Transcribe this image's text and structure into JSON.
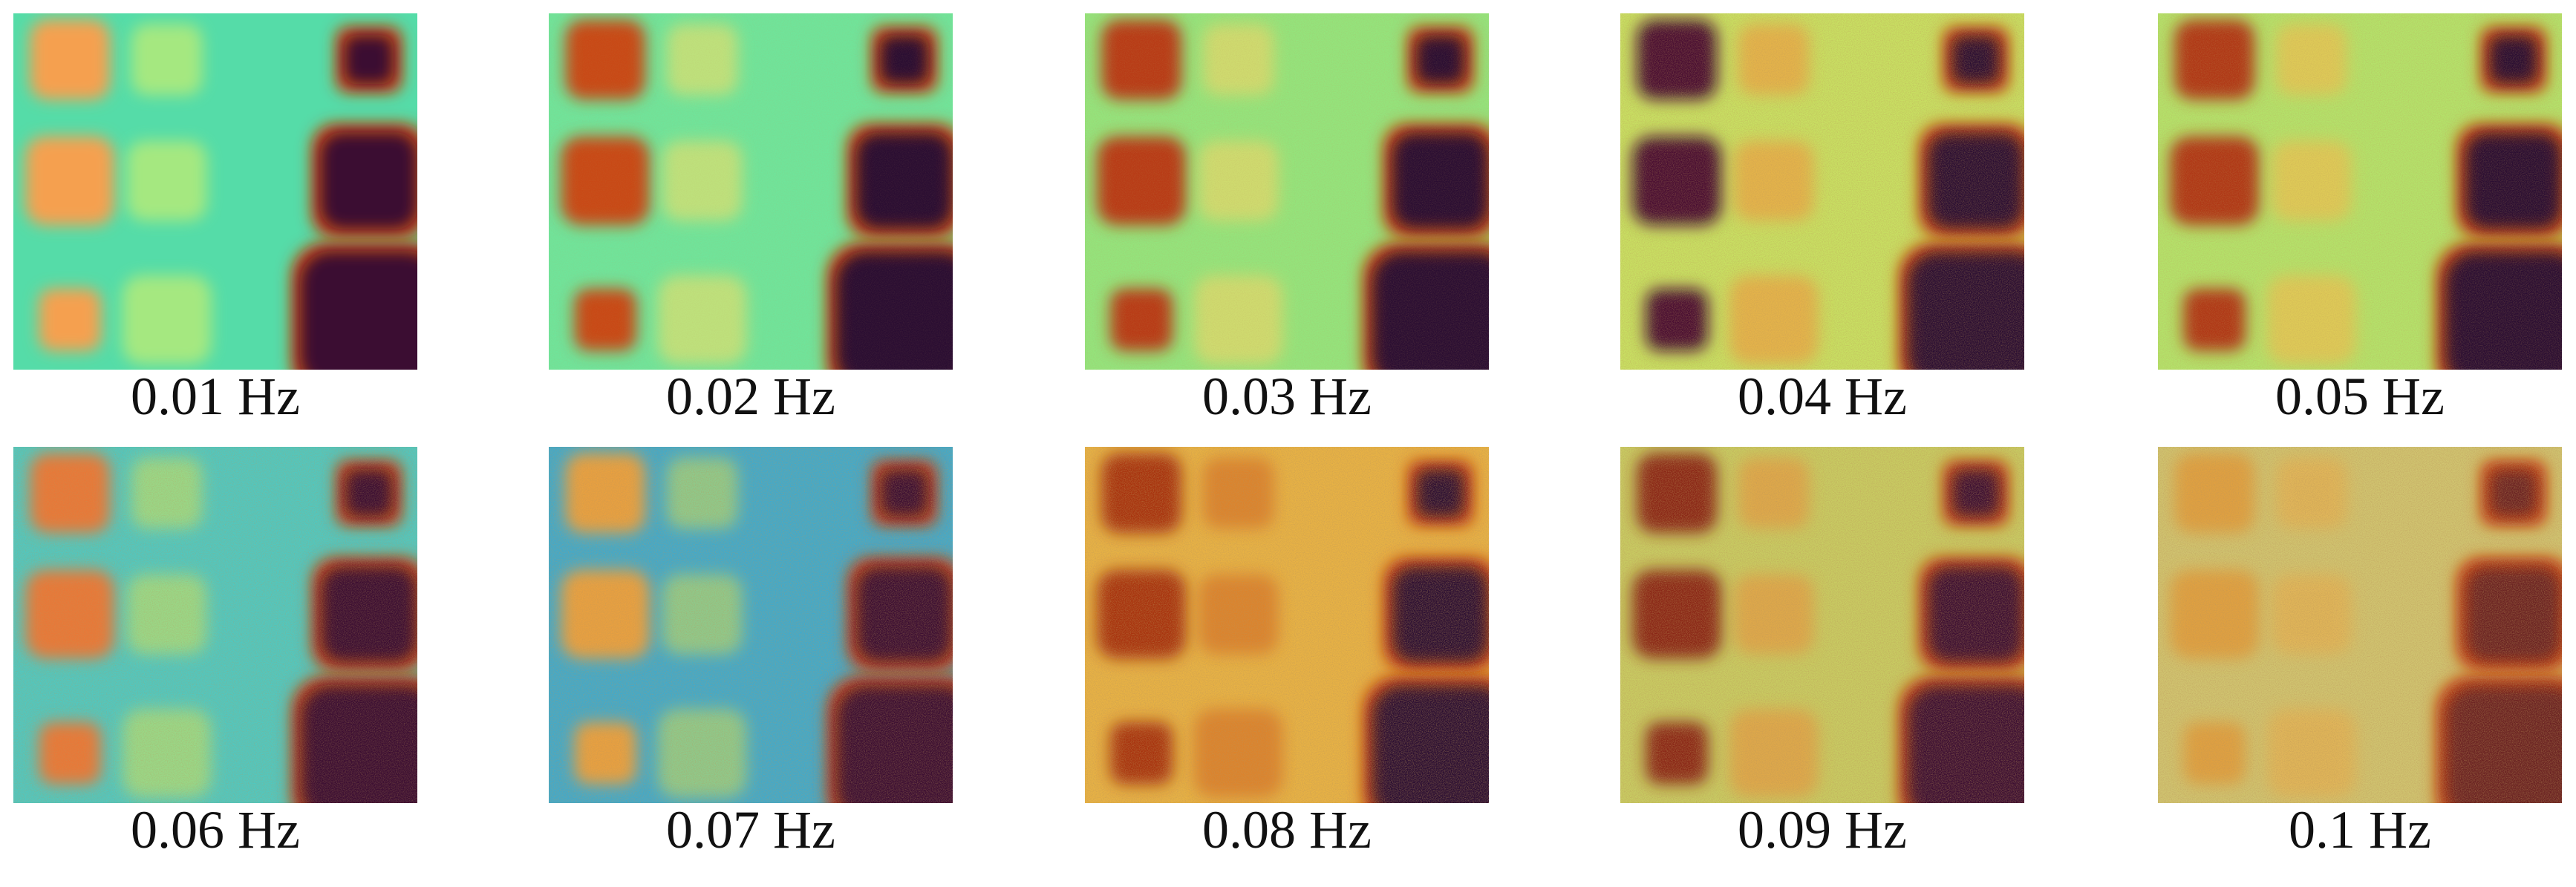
{
  "panels": [
    {
      "caption": "0.01 Hz"
    },
    {
      "caption": "0.02 Hz"
    },
    {
      "caption": "0.03 Hz"
    },
    {
      "caption": "0.04 Hz"
    },
    {
      "caption": "0.05 Hz"
    },
    {
      "caption": "0.06 Hz"
    },
    {
      "caption": "0.07 Hz"
    },
    {
      "caption": "0.08 Hz"
    },
    {
      "caption": "0.09 Hz"
    },
    {
      "caption": "0.1 Hz"
    }
  ]
}
